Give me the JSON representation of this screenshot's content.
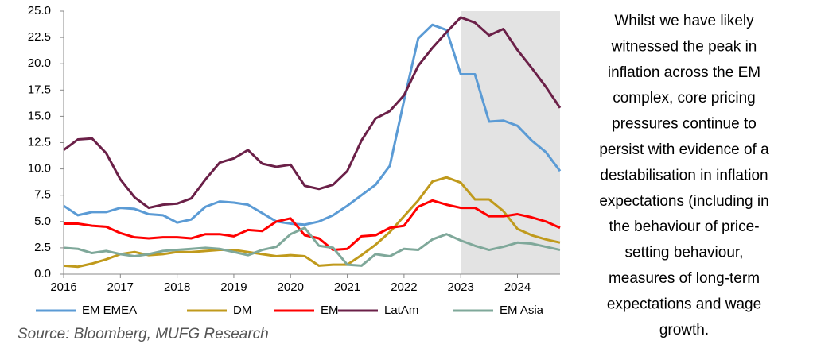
{
  "chart_data": {
    "type": "line",
    "x": [
      2016,
      2016.25,
      2016.5,
      2016.75,
      2017,
      2017.25,
      2017.5,
      2017.75,
      2018,
      2018.25,
      2018.5,
      2018.75,
      2019,
      2019.25,
      2019.5,
      2019.75,
      2020,
      2020.25,
      2020.5,
      2020.75,
      2021,
      2021.25,
      2021.5,
      2021.75,
      2022,
      2022.25,
      2022.5,
      2022.75,
      2023,
      2023.25,
      2023.5,
      2023.75,
      2024,
      2024.25,
      2024.5,
      2024.75
    ],
    "xlim": [
      2016,
      2024.75
    ],
    "xticks": [
      2016,
      2017,
      2018,
      2019,
      2020,
      2021,
      2022,
      2023,
      2024
    ],
    "ylim": [
      0,
      25
    ],
    "yticks": [
      {
        "value": 0,
        "label": "0.0"
      },
      {
        "value": 2.5,
        "label": "2.5"
      },
      {
        "value": 5,
        "label": "5.0"
      },
      {
        "value": 7.5,
        "label": "7.5"
      },
      {
        "value": 10,
        "label": "10.0"
      },
      {
        "value": 12.5,
        "label": "12.5"
      },
      {
        "value": 15,
        "label": "15.0"
      },
      {
        "value": 17.5,
        "label": "17.5"
      },
      {
        "value": 20,
        "label": "20.0"
      },
      {
        "value": 22.5,
        "label": "22.5"
      },
      {
        "value": 25,
        "label": "25.0"
      }
    ],
    "shaded_region": {
      "x": [
        2023,
        2024.75
      ],
      "color": "#e3e3e3"
    },
    "series": [
      {
        "name": "EM EMEA",
        "color": "#5b9bd5",
        "values": [
          6.5,
          5.6,
          5.9,
          5.9,
          6.3,
          6.2,
          5.7,
          5.6,
          4.9,
          5.2,
          6.4,
          6.9,
          6.8,
          6.6,
          5.8,
          5.0,
          4.8,
          4.7,
          5.0,
          5.6,
          6.5,
          7.5,
          8.5,
          10.3,
          16.5,
          22.4,
          23.7,
          23.2,
          19.0,
          19.0,
          14.5,
          14.6,
          14.1,
          12.7,
          11.6,
          9.8
        ]
      },
      {
        "name": "DM",
        "color": "#c09a1c",
        "values": [
          0.8,
          0.7,
          1.0,
          1.4,
          1.9,
          2.1,
          1.8,
          1.9,
          2.1,
          2.1,
          2.2,
          2.3,
          2.3,
          2.1,
          1.9,
          1.7,
          1.8,
          1.7,
          0.8,
          0.9,
          0.9,
          1.8,
          2.8,
          4.0,
          5.5,
          7.0,
          8.8,
          9.2,
          8.7,
          7.1,
          7.1,
          6.0,
          4.3,
          3.7,
          3.3,
          3.0
        ]
      },
      {
        "name": "EM",
        "color": "#ff0000",
        "values": [
          4.8,
          4.8,
          4.6,
          4.5,
          3.9,
          3.5,
          3.4,
          3.5,
          3.5,
          3.4,
          3.8,
          3.8,
          3.6,
          4.2,
          4.1,
          5.0,
          5.3,
          3.7,
          3.4,
          2.3,
          2.4,
          3.6,
          3.7,
          4.4,
          4.6,
          6.4,
          7.0,
          6.6,
          6.3,
          6.3,
          5.5,
          5.5,
          5.7,
          5.4,
          5.0,
          4.4
        ]
      },
      {
        "name": "LatAm",
        "color": "#6b2048",
        "values": [
          11.8,
          12.8,
          12.9,
          11.5,
          9.0,
          7.3,
          6.3,
          6.6,
          6.7,
          7.2,
          9.0,
          10.6,
          11.0,
          11.8,
          10.5,
          10.2,
          10.4,
          8.4,
          8.1,
          8.5,
          9.8,
          12.7,
          14.8,
          15.5,
          17.0,
          19.8,
          21.5,
          23.0,
          24.4,
          23.9,
          22.7,
          23.3,
          21.3,
          19.6,
          17.8,
          15.8
        ]
      },
      {
        "name": "EM Asia",
        "color": "#7fa89a",
        "values": [
          2.5,
          2.4,
          2.0,
          2.2,
          1.9,
          1.7,
          1.9,
          2.2,
          2.3,
          2.4,
          2.5,
          2.4,
          2.1,
          1.8,
          2.3,
          2.6,
          3.8,
          4.4,
          2.7,
          2.5,
          0.9,
          0.8,
          1.9,
          1.7,
          2.4,
          2.3,
          3.3,
          3.8,
          3.2,
          2.7,
          2.3,
          2.6,
          3.0,
          2.9,
          2.6,
          2.3
        ]
      }
    ],
    "source": "Source: Bloomberg, MUFG Research",
    "annotation_lines": [
      "Whilst we have likely",
      "witnessed the peak in",
      "inflation across the EM",
      "complex, core pricing",
      "pressures continue to",
      "persist with evidence of a",
      "destabilisation in inflation",
      "expectations (including in",
      "the behaviour of price-",
      "setting behaviour,",
      "measures of long-term",
      "expectations and wage",
      "growth."
    ]
  }
}
